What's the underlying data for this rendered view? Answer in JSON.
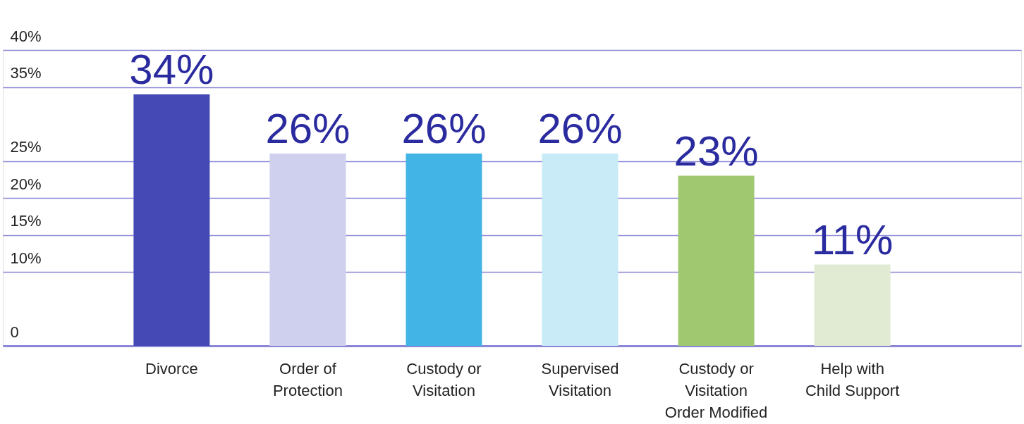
{
  "chart_data": {
    "type": "bar",
    "categories": [
      "Divorce",
      "Order of Protection",
      "Custody or Visitation",
      "Supervised Visitation",
      "Custody or Visitation Order Modified",
      "Help with Child Support"
    ],
    "values": [
      34,
      26,
      26,
      26,
      23,
      11
    ],
    "colors": [
      "#4549b5",
      "#cfcfee",
      "#42b4e6",
      "#c9eaf7",
      "#a0c870",
      "#e1ebd4"
    ],
    "value_labels": [
      "34%",
      "26%",
      "26%",
      "26%",
      "23%",
      "11%"
    ],
    "ylim": [
      0,
      40
    ],
    "yticks": [
      0,
      {
        "value": 10,
        "label": "10%"
      },
      {
        "value": 15,
        "label": "15%"
      },
      {
        "value": 20,
        "label": "20%"
      },
      {
        "value": 25,
        "label": "25%"
      },
      {
        "value": 35,
        "label": "35%"
      },
      {
        "value": 40,
        "label": "40%"
      }
    ],
    "grid": "y"
  }
}
